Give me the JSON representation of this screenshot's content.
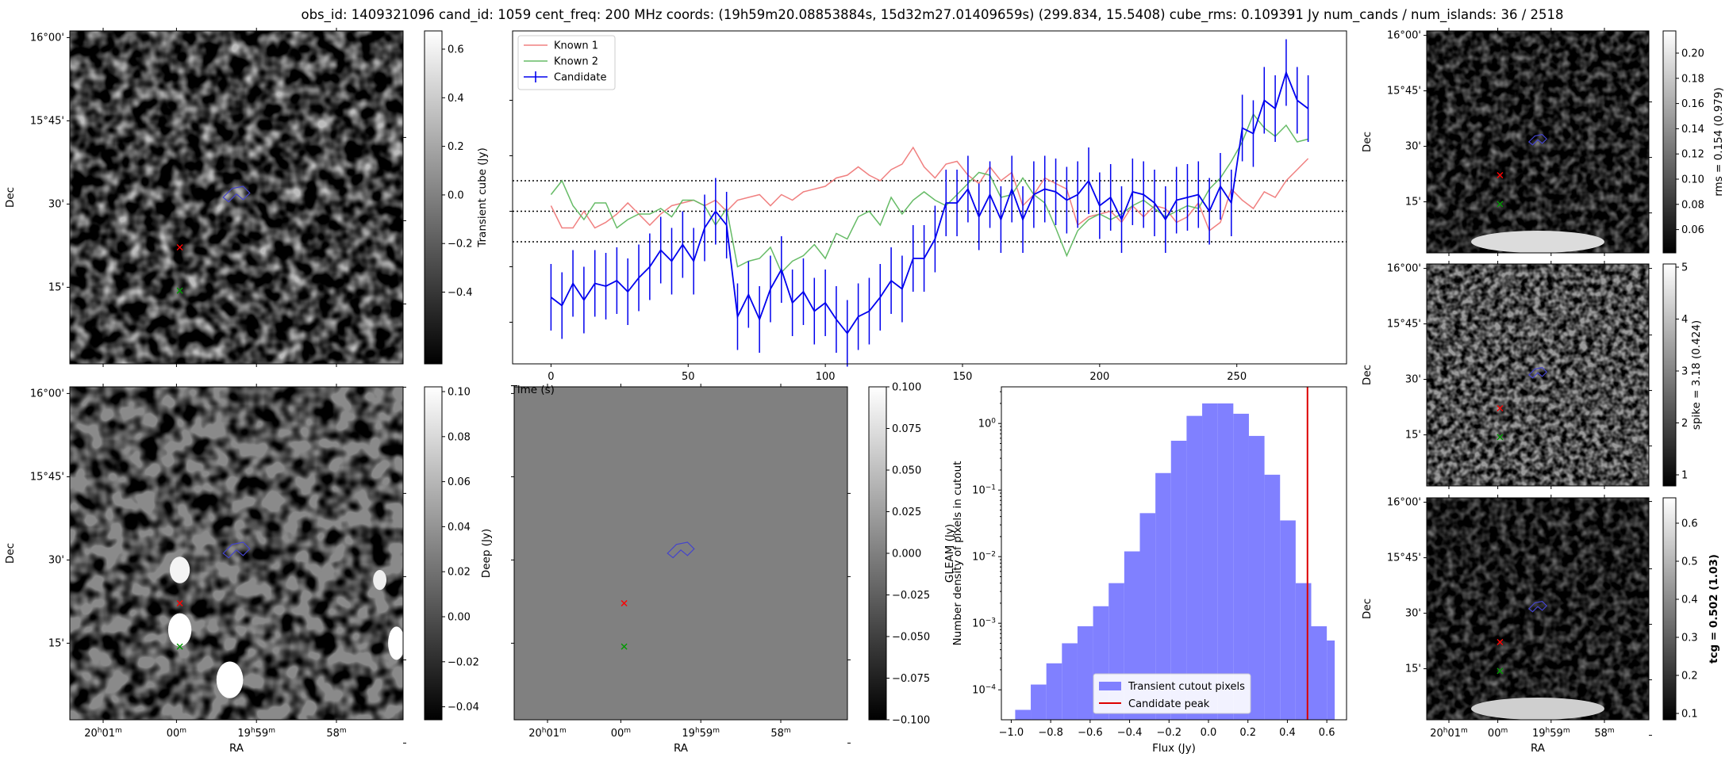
{
  "title": "obs_id: 1409321096 cand_id: 1059 cent_freq: 200 MHz coords: (19h59m20.08853884s, 15d32m27.01409659s) (299.834, 15.5408) cube_rms: 0.109391 Jy num_cands / num_islands: 36 / 2518",
  "colors": {
    "known1": "#f08080",
    "known2": "#66bb66",
    "candidate": "#0000ee",
    "hist": "#8080ff",
    "peak": "#dd0000",
    "red_marker": "#ff0000",
    "green_marker": "#009900",
    "region": "#4444cc"
  },
  "sky": {
    "ra_label": "RA",
    "dec_label": "Dec",
    "ra_ticks": [
      {
        "h": "20",
        "hu": "h",
        "m": "01",
        "mu": "m"
      },
      {
        "h": "",
        "hu": "",
        "m": "00",
        "mu": "m"
      },
      {
        "h": "19",
        "hu": "h",
        "m": "59",
        "mu": "m"
      },
      {
        "h": "",
        "hu": "",
        "m": "58",
        "mu": "m"
      }
    ],
    "dec_ticks": [
      "16°00'",
      "15°45'",
      "30'",
      "15'"
    ]
  },
  "colorbars": {
    "transient": {
      "label": "Transient cube (Jy)",
      "ticks": [
        "0.6",
        "0.4",
        "0.2",
        "0.0",
        "−0.2",
        "−0.4"
      ]
    },
    "deep": {
      "label": "Deep (Jy)",
      "ticks": [
        "0.10",
        "0.08",
        "0.06",
        "0.04",
        "0.02",
        "0.00",
        "−0.02",
        "−0.04"
      ]
    },
    "gleam": {
      "label": "GLEAM (Jy)",
      "ticks": [
        "0.100",
        "0.075",
        "0.050",
        "0.025",
        "0.000",
        "−0.025",
        "−0.050",
        "−0.075",
        "−0.100"
      ]
    },
    "rms": {
      "label": "rms = 0.154 (0.979)",
      "ticks": [
        "0.20",
        "0.18",
        "0.16",
        "0.14",
        "0.12",
        "0.10",
        "0.08",
        "0.06"
      ]
    },
    "spike": {
      "label": "spike = 3.18 (0.424)",
      "ticks": [
        "5",
        "4",
        "3",
        "2",
        "1"
      ]
    },
    "tcg": {
      "label": "tcg = 0.502 (1.03)",
      "ticks": [
        "0.6",
        "0.5",
        "0.4",
        "0.3",
        "0.2",
        "0.1"
      ]
    }
  },
  "chart_data": [
    {
      "type": "line",
      "name": "lightcurve",
      "xlabel": "Time (s)",
      "ylabel": "",
      "xlim": [
        -14,
        290
      ],
      "ylim": [
        -0.55,
        0.65
      ],
      "x_ticks": [
        "0",
        "50",
        "100",
        "150",
        "200",
        "250"
      ],
      "hlines": [
        0.11,
        0.0,
        -0.11
      ],
      "legend": [
        "Known 1",
        "Known 2",
        "Candidate"
      ],
      "x": [
        0,
        4,
        8,
        12,
        16,
        20,
        24,
        28,
        32,
        36,
        40,
        44,
        48,
        52,
        56,
        60,
        64,
        68,
        72,
        76,
        80,
        84,
        88,
        92,
        96,
        100,
        104,
        108,
        112,
        116,
        120,
        124,
        128,
        132,
        136,
        140,
        144,
        148,
        152,
        156,
        160,
        164,
        168,
        172,
        176,
        180,
        184,
        188,
        192,
        196,
        200,
        204,
        208,
        212,
        216,
        220,
        224,
        228,
        232,
        236,
        240,
        244,
        248,
        252,
        256,
        260,
        264,
        268,
        272,
        276
      ],
      "series": [
        {
          "name": "Known 1",
          "values": [
            0.02,
            -0.06,
            -0.06,
            0.0,
            -0.06,
            -0.04,
            -0.01,
            0.03,
            -0.01,
            -0.05,
            -0.01,
            0.02,
            0.03,
            0.04,
            0.02,
            0.04,
            0.0,
            0.04,
            0.05,
            0.06,
            0.02,
            0.06,
            0.04,
            0.07,
            0.08,
            0.09,
            0.12,
            0.13,
            0.16,
            0.13,
            0.11,
            0.15,
            0.17,
            0.23,
            0.16,
            0.12,
            0.17,
            0.18,
            0.13,
            0.1,
            0.16,
            0.11,
            0.14,
            0.02,
            0.06,
            0.12,
            0.1,
            0.08,
            -0.05,
            -0.02,
            -0.01,
            0.0,
            -0.04,
            0.02,
            -0.02,
            0.02,
            0.01,
            -0.04,
            -0.02,
            0.03,
            -0.07,
            -0.04,
            0.08,
            0.04,
            0.01,
            0.07,
            0.05,
            0.11,
            0.15,
            0.19
          ]
        },
        {
          "name": "Known 2",
          "values": [
            0.06,
            0.11,
            0.02,
            -0.03,
            0.03,
            0.03,
            -0.06,
            -0.03,
            -0.01,
            -0.01,
            0.01,
            -0.02,
            0.04,
            0.04,
            0.02,
            -0.05,
            0.01,
            -0.2,
            -0.18,
            -0.17,
            -0.13,
            -0.22,
            -0.18,
            -0.16,
            -0.12,
            -0.17,
            -0.08,
            -0.1,
            -0.02,
            0.0,
            -0.05,
            0.05,
            -0.01,
            0.04,
            0.07,
            0.04,
            0.02,
            0.06,
            0.1,
            0.14,
            0.13,
            0.05,
            0.06,
            0.12,
            0.06,
            0.03,
            -0.06,
            -0.16,
            -0.07,
            -0.03,
            -0.01,
            -0.03,
            -0.01,
            0.02,
            0.04,
            0.01,
            -0.02,
            0.0,
            0.02,
            0.01,
            0.08,
            0.12,
            0.18,
            0.25,
            0.35,
            0.3,
            0.27,
            0.31,
            0.25,
            0.26
          ]
        },
        {
          "name": "Candidate",
          "values": [
            -0.31,
            -0.34,
            -0.26,
            -0.32,
            -0.26,
            -0.27,
            -0.25,
            -0.29,
            -0.24,
            -0.2,
            -0.14,
            -0.18,
            -0.12,
            -0.18,
            -0.06,
            0.0,
            -0.05,
            -0.38,
            -0.3,
            -0.39,
            -0.28,
            -0.21,
            -0.33,
            -0.29,
            -0.36,
            -0.33,
            -0.39,
            -0.44,
            -0.38,
            -0.36,
            -0.31,
            -0.25,
            -0.28,
            -0.17,
            -0.17,
            -0.1,
            0.03,
            0.03,
            0.08,
            -0.02,
            0.06,
            -0.03,
            0.08,
            -0.03,
            0.06,
            0.08,
            0.07,
            0.04,
            0.06,
            0.11,
            0.02,
            0.05,
            -0.03,
            0.07,
            0.06,
            0.03,
            -0.03,
            0.04,
            0.05,
            0.06,
            0.0,
            0.09,
            0.03,
            0.3,
            0.28,
            0.4,
            0.37,
            0.5,
            0.4,
            0.37
          ]
        }
      ],
      "candidate_err": 0.12
    },
    {
      "type": "bar",
      "name": "histogram",
      "xlabel": "Flux (Jy)",
      "ylabel": "Number density of pixels in cutout",
      "yscale": "log",
      "xlim": [
        -1.05,
        0.7
      ],
      "ylim_log10": [
        -4.45,
        0.55
      ],
      "x_ticks": [
        -1.0,
        -0.8,
        -0.6,
        -0.4,
        -0.2,
        0.0,
        0.2,
        0.4,
        0.6
      ],
      "x_tick_labels": [
        "−1.0",
        "−0.8",
        "−0.6",
        "−0.4",
        "−0.2",
        "0.0",
        "0.2",
        "0.4",
        "0.6"
      ],
      "y_ticks": [
        0,
        -1,
        -2,
        -3,
        -4
      ],
      "bin_edges": [
        -0.98,
        -0.901,
        -0.822,
        -0.743,
        -0.664,
        -0.585,
        -0.506,
        -0.427,
        -0.348,
        -0.269,
        -0.19,
        -0.111,
        -0.032,
        0.047,
        0.126,
        0.205,
        0.284,
        0.363,
        0.442,
        0.521,
        0.6,
        0.64
      ],
      "density": [
        5e-05,
        0.00012,
        0.00025,
        0.0005,
        0.0009,
        0.0018,
        0.004,
        0.012,
        0.045,
        0.18,
        0.55,
        1.3,
        2.0,
        2.0,
        1.4,
        0.65,
        0.17,
        0.035,
        0.004,
        0.0009,
        0.00055
      ],
      "peak": 0.502,
      "legend": [
        "Transient cutout pixels",
        "Candidate peak"
      ]
    }
  ]
}
